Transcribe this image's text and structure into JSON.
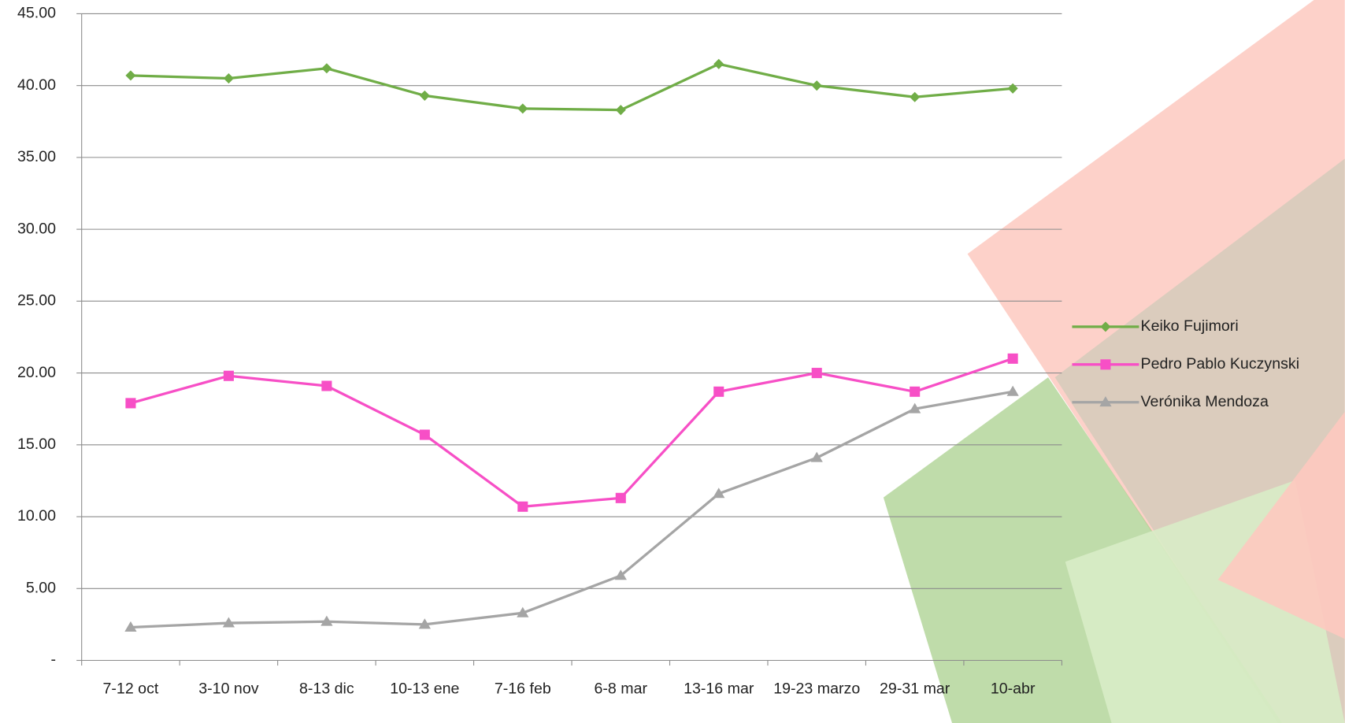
{
  "chart_data": {
    "type": "line",
    "categories": [
      "7-12 oct",
      "3-10 nov",
      "8-13 dic",
      "10-13 ene",
      "7-16 feb",
      "6-8 mar",
      "13-16 mar",
      "19-23 marzo",
      "29-31 mar",
      "10-abr"
    ],
    "series": [
      {
        "name": "Keiko Fujimori",
        "color": "#70ad47",
        "marker": "diamond",
        "values": [
          40.7,
          40.5,
          41.2,
          39.3,
          38.4,
          38.3,
          41.5,
          40.0,
          39.2,
          39.8
        ]
      },
      {
        "name": "Pedro Pablo Kuczynski",
        "color": "#f74fc6",
        "marker": "square",
        "values": [
          17.9,
          19.8,
          19.1,
          15.7,
          10.7,
          11.3,
          18.7,
          20.0,
          18.7,
          21.0
        ]
      },
      {
        "name": "Verónika Mendoza",
        "color": "#a5a5a5",
        "marker": "triangle",
        "values": [
          2.3,
          2.6,
          2.7,
          2.5,
          3.3,
          5.9,
          11.6,
          14.1,
          17.5,
          18.7
        ]
      }
    ],
    "ylim": [
      0,
      45
    ],
    "yticks": [
      {
        "value": 0,
        "label": "-"
      },
      {
        "value": 5,
        "label": "5.00"
      },
      {
        "value": 10,
        "label": "10.00"
      },
      {
        "value": 15,
        "label": "15.00"
      },
      {
        "value": 20,
        "label": "20.00"
      },
      {
        "value": 25,
        "label": "25.00"
      },
      {
        "value": 30,
        "label": "30.00"
      },
      {
        "value": 35,
        "label": "35.00"
      },
      {
        "value": 40,
        "label": "40.00"
      },
      {
        "value": 45,
        "label": "45.00"
      }
    ],
    "grid": true,
    "legend": "right"
  }
}
